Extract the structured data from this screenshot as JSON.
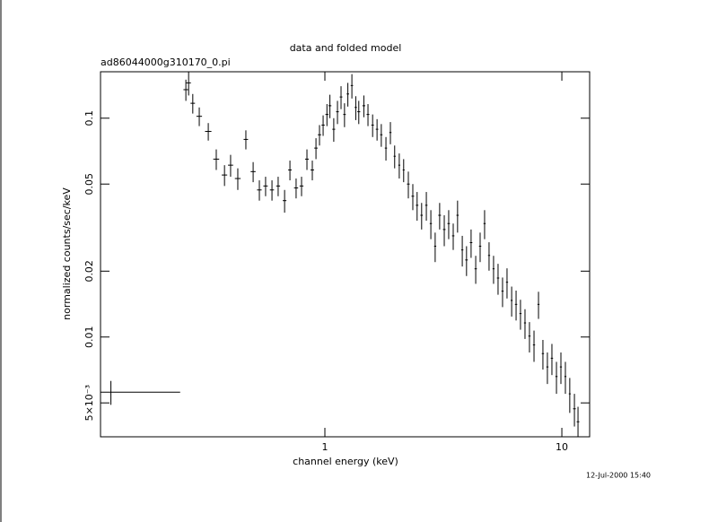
{
  "chart_data": {
    "type": "errorbar",
    "title": "data and folded model",
    "subtitle": "ad86044000g310170_0.pi",
    "xlabel": "channel energy (keV)",
    "ylabel": "normalized counts/sec/keV",
    "timestamp": "12-Jul-2000 15:40",
    "xlog": true,
    "ylog": true,
    "color": "#000000",
    "xlim": [
      0.113,
      13.1
    ],
    "ylim": [
      0.0035,
      0.163
    ],
    "xticks": [
      1,
      10
    ],
    "yticks": [
      0.1,
      0.05,
      0.02,
      0.01,
      {
        "value": 0.005,
        "label": "5×10⁻³"
      }
    ],
    "x": [
      0.125,
      0.259,
      0.266,
      0.277,
      0.295,
      0.322,
      0.348,
      0.377,
      0.4,
      0.429,
      0.464,
      0.498,
      0.529,
      0.562,
      0.598,
      0.635,
      0.676,
      0.712,
      0.756,
      0.797,
      0.84,
      0.885,
      0.917,
      0.949,
      0.983,
      1.02,
      1.05,
      1.09,
      1.13,
      1.17,
      1.21,
      1.25,
      1.3,
      1.35,
      1.39,
      1.46,
      1.52,
      1.59,
      1.66,
      1.73,
      1.81,
      1.89,
      1.97,
      2.06,
      2.15,
      2.25,
      2.35,
      2.45,
      2.56,
      2.68,
      2.8,
      2.92,
      3.05,
      3.19,
      3.33,
      3.48,
      3.63,
      3.8,
      3.96,
      4.14,
      4.33,
      4.52,
      4.72,
      4.93,
      5.15,
      5.38,
      5.62,
      5.87,
      6.14,
      6.41,
      6.69,
      6.99,
      7.3,
      7.63,
      7.97,
      8.32,
      8.69,
      9.08,
      9.49,
      9.91,
      10.35,
      10.8,
      11.3,
      11.7
    ],
    "xerr": [
      0.12,
      0.006,
      0.006,
      0.006,
      0.008,
      0.01,
      0.01,
      0.01,
      0.01,
      0.012,
      0.01,
      0.012,
      0.012,
      0.012,
      0.012,
      0.012,
      0.012,
      0.012,
      0.015,
      0.015,
      0.015,
      0.015,
      0.015,
      0.015,
      0.015,
      0.015,
      0.015,
      0.015,
      0.015,
      0.015,
      0.015,
      0.015,
      0.015,
      0.015,
      0.02,
      0.02,
      0.02,
      0.02,
      0.02,
      0.02,
      0.02,
      0.02,
      0.02,
      0.02,
      0.02,
      0.03,
      0.03,
      0.03,
      0.03,
      0.03,
      0.03,
      0.03,
      0.04,
      0.04,
      0.04,
      0.04,
      0.04,
      0.04,
      0.05,
      0.05,
      0.05,
      0.05,
      0.05,
      0.05,
      0.05,
      0.06,
      0.06,
      0.06,
      0.06,
      0.07,
      0.07,
      0.07,
      0.08,
      0.08,
      0.08,
      0.09,
      0.09,
      0.1,
      0.1,
      0.1,
      0.1,
      0.1,
      0.15,
      0.15
    ],
    "values": [
      0.0056,
      0.135,
      0.145,
      0.117,
      0.102,
      0.087,
      0.065,
      0.055,
      0.061,
      0.053,
      0.08,
      0.057,
      0.047,
      0.049,
      0.047,
      0.049,
      0.042,
      0.058,
      0.048,
      0.049,
      0.065,
      0.058,
      0.073,
      0.084,
      0.093,
      0.104,
      0.114,
      0.089,
      0.107,
      0.125,
      0.104,
      0.129,
      0.141,
      0.112,
      0.107,
      0.114,
      0.104,
      0.093,
      0.089,
      0.084,
      0.073,
      0.086,
      0.067,
      0.061,
      0.058,
      0.05,
      0.044,
      0.04,
      0.036,
      0.04,
      0.033,
      0.026,
      0.036,
      0.031,
      0.033,
      0.029,
      0.036,
      0.025,
      0.0225,
      0.027,
      0.0205,
      0.026,
      0.033,
      0.0236,
      0.0205,
      0.0186,
      0.0162,
      0.0178,
      0.0147,
      0.0141,
      0.0128,
      0.0116,
      0.0101,
      0.0092,
      0.0141,
      0.0084,
      0.0073,
      0.008,
      0.0066,
      0.0073,
      0.0066,
      0.0055,
      0.0047,
      0.0041
    ],
    "yerr": [
      0.0007,
      0.015,
      0.018,
      0.012,
      0.01,
      0.008,
      0.007,
      0.006,
      0.007,
      0.006,
      0.008,
      0.006,
      0.005,
      0.005,
      0.005,
      0.005,
      0.005,
      0.006,
      0.005,
      0.005,
      0.007,
      0.006,
      0.008,
      0.009,
      0.01,
      0.012,
      0.014,
      0.011,
      0.013,
      0.015,
      0.013,
      0.016,
      0.018,
      0.014,
      0.013,
      0.013,
      0.012,
      0.011,
      0.01,
      0.01,
      0.009,
      0.01,
      0.008,
      0.008,
      0.007,
      0.007,
      0.006,
      0.006,
      0.005,
      0.006,
      0.005,
      0.004,
      0.005,
      0.005,
      0.005,
      0.004,
      0.006,
      0.004,
      0.0035,
      0.004,
      0.003,
      0.004,
      0.005,
      0.0035,
      0.003,
      0.003,
      0.0025,
      0.0028,
      0.0023,
      0.0022,
      0.002,
      0.0018,
      0.0016,
      0.0015,
      0.002,
      0.0013,
      0.0012,
      0.0013,
      0.0011,
      0.0012,
      0.0011,
      0.001,
      0.0008,
      0.0007
    ]
  }
}
